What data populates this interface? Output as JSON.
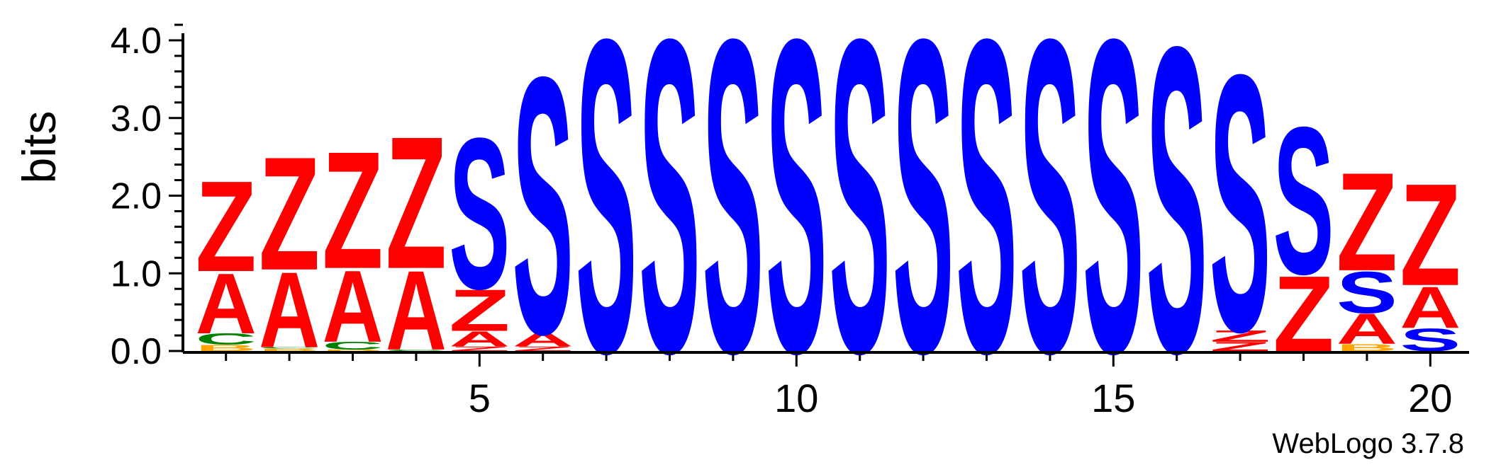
{
  "colors": {
    "Z": "#ff0000",
    "A": "#ff0000",
    "S": "#0000ff",
    "C": "#008000",
    "B": "#ffa500",
    "axis": "#000000"
  },
  "credit": "WebLogo 3.7.8",
  "chart_data": {
    "type": "sequence-logo",
    "ylabel": "bits",
    "ylim": [
      0,
      4.2
    ],
    "y_ticks": [
      "0.0",
      "1.0",
      "2.0",
      "3.0",
      "4.0"
    ],
    "y_tick_values": [
      0,
      1,
      2,
      3,
      4
    ],
    "x_ticks": [
      "5",
      "10",
      "15",
      "20"
    ],
    "x_tick_values": [
      5,
      10,
      15,
      20
    ],
    "position_count": 20,
    "positions": [
      {
        "pos": 1,
        "stack": [
          [
            "B",
            0.08
          ],
          [
            "C",
            0.15
          ],
          [
            "A",
            0.8
          ],
          [
            "Z",
            1.2
          ]
        ]
      },
      {
        "pos": 2,
        "stack": [
          [
            "B",
            0.03
          ],
          [
            "C",
            0.02
          ],
          [
            "A",
            1.0
          ],
          [
            "Z",
            1.5
          ]
        ]
      },
      {
        "pos": 3,
        "stack": [
          [
            "B",
            0.02
          ],
          [
            "C",
            0.1
          ],
          [
            "A",
            0.95
          ],
          [
            "Z",
            1.55
          ]
        ]
      },
      {
        "pos": 4,
        "stack": [
          [
            "C",
            0.02
          ],
          [
            "A",
            1.05
          ],
          [
            "Z",
            1.75
          ]
        ]
      },
      {
        "pos": 5,
        "stack": [
          [
            "Z",
            0.06
          ],
          [
            "A",
            0.2
          ],
          [
            "Z",
            0.55
          ],
          [
            "S",
            2.0
          ]
        ]
      },
      {
        "pos": 6,
        "stack": [
          [
            "Z",
            0.06
          ],
          [
            "A",
            0.18
          ],
          [
            "S",
            3.4
          ]
        ]
      },
      {
        "pos": 7,
        "stack": [
          [
            "S",
            4.15
          ]
        ]
      },
      {
        "pos": 8,
        "stack": [
          [
            "S",
            4.15
          ]
        ]
      },
      {
        "pos": 9,
        "stack": [
          [
            "S",
            4.15
          ]
        ]
      },
      {
        "pos": 10,
        "stack": [
          [
            "S",
            4.15
          ]
        ]
      },
      {
        "pos": 11,
        "stack": [
          [
            "S",
            4.15
          ]
        ]
      },
      {
        "pos": 12,
        "stack": [
          [
            "S",
            4.15
          ]
        ]
      },
      {
        "pos": 13,
        "stack": [
          [
            "S",
            4.15
          ]
        ]
      },
      {
        "pos": 14,
        "stack": [
          [
            "S",
            4.15
          ]
        ]
      },
      {
        "pos": 15,
        "stack": [
          [
            "S",
            4.15
          ]
        ]
      },
      {
        "pos": 16,
        "stack": [
          [
            "S",
            4.05
          ]
        ]
      },
      {
        "pos": 17,
        "stack": [
          [
            "Z",
            0.12
          ],
          [
            "Z",
            0.15
          ],
          [
            "S",
            3.4
          ]
        ]
      },
      {
        "pos": 18,
        "stack": [
          [
            "Z",
            1.0
          ],
          [
            "S",
            1.95
          ]
        ]
      },
      {
        "pos": 19,
        "stack": [
          [
            "B",
            0.09
          ],
          [
            "A",
            0.4
          ],
          [
            "S",
            0.55
          ],
          [
            "Z",
            1.3
          ]
        ]
      },
      {
        "pos": 20,
        "stack": [
          [
            "S",
            0.3
          ],
          [
            "A",
            0.55
          ],
          [
            "Z",
            1.35
          ]
        ]
      }
    ]
  }
}
